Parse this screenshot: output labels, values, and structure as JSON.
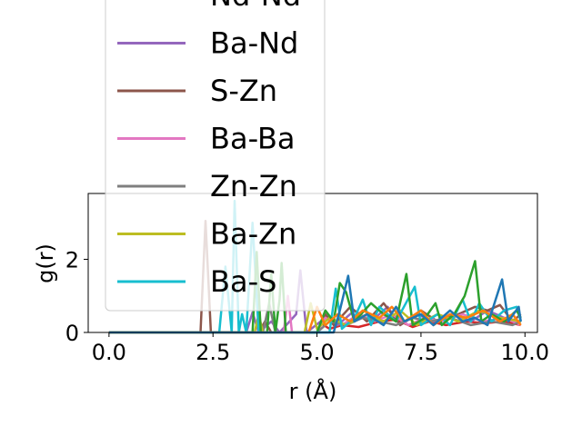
{
  "chart_data": {
    "type": "line",
    "title": "",
    "xlabel": "r (Å)",
    "ylabel": "g(r)",
    "xlim": [
      -0.5,
      10.3
    ],
    "ylim": [
      0,
      3.8
    ],
    "xticks": [
      0.0,
      2.5,
      5.0,
      7.5,
      10.0
    ],
    "xtick_labels": [
      "0.0",
      "2.5",
      "5.0",
      "7.5",
      "10.0"
    ],
    "yticks": [
      0,
      2
    ],
    "ytick_labels": [
      "0",
      "2"
    ],
    "grid": false,
    "legend_placement": "upper-left, extending above the axes",
    "series": [
      {
        "name": "Nd-Nd",
        "color": "#d62728",
        "points": [
          [
            0,
            0
          ],
          [
            5.0,
            0
          ],
          [
            5.1,
            0.25
          ],
          [
            5.3,
            0.1
          ],
          [
            5.6,
            0.2
          ],
          [
            6.0,
            0.15
          ],
          [
            6.5,
            0.3
          ],
          [
            6.9,
            0.35
          ],
          [
            7.3,
            0.15
          ],
          [
            7.7,
            0.3
          ],
          [
            8.1,
            0.2
          ],
          [
            8.6,
            0.3
          ],
          [
            9.0,
            0.25
          ],
          [
            9.5,
            0.3
          ],
          [
            9.9,
            0.2
          ]
        ]
      },
      {
        "name": "Ba-Nd",
        "color": "#9467bd",
        "points": [
          [
            0,
            0
          ],
          [
            3.3,
            0
          ],
          [
            3.45,
            0.55
          ],
          [
            3.6,
            0
          ],
          [
            3.9,
            0.3
          ],
          [
            4.1,
            0
          ],
          [
            4.5,
            0.5
          ],
          [
            4.6,
            1.7
          ],
          [
            4.75,
            0
          ],
          [
            5.2,
            0.4
          ],
          [
            5.5,
            0.2
          ],
          [
            5.9,
            0.6
          ],
          [
            6.3,
            0.3
          ],
          [
            6.7,
            0.7
          ],
          [
            7.0,
            0.2
          ],
          [
            7.4,
            0.5
          ],
          [
            7.8,
            0.3
          ],
          [
            8.3,
            0.5
          ],
          [
            8.7,
            0.3
          ],
          [
            9.1,
            0.6
          ],
          [
            9.5,
            0.4
          ],
          [
            9.9,
            0.3
          ]
        ]
      },
      {
        "name": "S-Zn",
        "color": "#8c564b",
        "points": [
          [
            0,
            0
          ],
          [
            2.2,
            0
          ],
          [
            2.32,
            3.05
          ],
          [
            2.45,
            0
          ],
          [
            3.6,
            0
          ],
          [
            3.75,
            0.3
          ],
          [
            3.9,
            0
          ],
          [
            5.0,
            0
          ],
          [
            5.2,
            0.5
          ],
          [
            5.4,
            0.2
          ],
          [
            5.8,
            0.7
          ],
          [
            6.2,
            0.3
          ],
          [
            6.6,
            0.8
          ],
          [
            7.0,
            0.2
          ],
          [
            7.5,
            0.6
          ],
          [
            7.9,
            0.3
          ],
          [
            8.4,
            0.5
          ],
          [
            8.8,
            0.7
          ],
          [
            9.1,
            0.6
          ],
          [
            9.4,
            0.75
          ],
          [
            9.7,
            0.3
          ],
          [
            9.9,
            0.5
          ]
        ]
      },
      {
        "name": "Ba-Ba",
        "color": "#e377c2",
        "points": [
          [
            0,
            0
          ],
          [
            4.2,
            0
          ],
          [
            4.3,
            1.0
          ],
          [
            4.4,
            0
          ],
          [
            5.0,
            0
          ],
          [
            5.2,
            0.4
          ],
          [
            5.6,
            0.2
          ],
          [
            6.0,
            0.5
          ],
          [
            6.4,
            0.3
          ],
          [
            6.8,
            0.5
          ],
          [
            7.2,
            0.2
          ],
          [
            7.6,
            0.4
          ],
          [
            8.0,
            0.3
          ],
          [
            8.5,
            0.5
          ],
          [
            9.0,
            0.3
          ],
          [
            9.5,
            0.4
          ],
          [
            9.9,
            0.2
          ]
        ]
      },
      {
        "name": "Zn-Zn",
        "color": "#7f7f7f",
        "points": [
          [
            0,
            0
          ],
          [
            3.7,
            0
          ],
          [
            3.85,
            0.8
          ],
          [
            4.0,
            0
          ],
          [
            5.0,
            0
          ],
          [
            5.3,
            0.3
          ],
          [
            5.7,
            0.2
          ],
          [
            6.1,
            0.4
          ],
          [
            6.5,
            0.3
          ],
          [
            6.9,
            0.2
          ],
          [
            7.3,
            0.4
          ],
          [
            7.7,
            0.3
          ],
          [
            8.2,
            0.4
          ],
          [
            8.7,
            0.2
          ],
          [
            9.2,
            0.3
          ],
          [
            9.7,
            0.2
          ],
          [
            9.9,
            0.3
          ]
        ]
      },
      {
        "name": "Ba-Zn",
        "color": "#bcbd22",
        "points": [
          [
            0,
            0
          ],
          [
            3.5,
            0
          ],
          [
            3.6,
            0.5
          ],
          [
            3.7,
            0
          ],
          [
            4.7,
            0
          ],
          [
            4.85,
            0.8
          ],
          [
            5.0,
            0.1
          ],
          [
            5.3,
            0.4
          ],
          [
            5.7,
            0.2
          ],
          [
            6.2,
            0.5
          ],
          [
            6.6,
            0.3
          ],
          [
            7.0,
            0.6
          ],
          [
            7.4,
            0.2
          ],
          [
            7.9,
            0.5
          ],
          [
            8.4,
            0.3
          ],
          [
            8.9,
            0.6
          ],
          [
            9.4,
            0.4
          ],
          [
            9.9,
            0.3
          ]
        ]
      },
      {
        "name": "Ba-S",
        "color": "#17becf",
        "points": [
          [
            0,
            0
          ],
          [
            2.65,
            0
          ],
          [
            2.8,
            1.8
          ],
          [
            2.95,
            0
          ],
          [
            3.02,
            3.6
          ],
          [
            3.12,
            0
          ],
          [
            3.2,
            0.5
          ],
          [
            3.3,
            0
          ],
          [
            3.45,
            3.0
          ],
          [
            3.6,
            0
          ],
          [
            4.0,
            0
          ],
          [
            5.3,
            0
          ],
          [
            5.45,
            1.2
          ],
          [
            5.6,
            0.1
          ],
          [
            5.9,
            0.4
          ],
          [
            6.1,
            0.9
          ],
          [
            6.3,
            0.2
          ],
          [
            6.5,
            0.7
          ],
          [
            6.9,
            0.3
          ],
          [
            7.35,
            1.25
          ],
          [
            7.5,
            0.2
          ],
          [
            7.9,
            0.5
          ],
          [
            8.2,
            0.2
          ],
          [
            8.5,
            0.9
          ],
          [
            8.7,
            0.3
          ],
          [
            8.9,
            0.8
          ],
          [
            9.2,
            0.3
          ],
          [
            9.5,
            0.6
          ],
          [
            9.8,
            0.7
          ],
          [
            9.9,
            0.3
          ]
        ]
      },
      {
        "name": "",
        "color": "#2ca02c",
        "points": [
          [
            0,
            0
          ],
          [
            3.45,
            0
          ],
          [
            3.55,
            2.2
          ],
          [
            3.65,
            0
          ],
          [
            3.8,
            0
          ],
          [
            3.9,
            1.6
          ],
          [
            4.0,
            0
          ],
          [
            4.1,
            0.9
          ],
          [
            4.15,
            1.9
          ],
          [
            4.25,
            0
          ],
          [
            5.0,
            0
          ],
          [
            5.2,
            0.6
          ],
          [
            5.4,
            0.3
          ],
          [
            5.55,
            1.35
          ],
          [
            5.7,
            1.1
          ],
          [
            5.9,
            0.3
          ],
          [
            6.3,
            0.8
          ],
          [
            6.6,
            0.5
          ],
          [
            6.9,
            0.3
          ],
          [
            7.15,
            1.6
          ],
          [
            7.3,
            0.2
          ],
          [
            7.6,
            0.4
          ],
          [
            7.85,
            0.8
          ],
          [
            8.0,
            0.2
          ],
          [
            8.3,
            0.5
          ],
          [
            8.55,
            1.0
          ],
          [
            8.8,
            1.95
          ],
          [
            8.95,
            0.3
          ],
          [
            9.2,
            0.5
          ],
          [
            9.5,
            0.3
          ],
          [
            9.8,
            0.6
          ],
          [
            9.9,
            0.4
          ]
        ]
      },
      {
        "name": "",
        "color": "#ff7f0e",
        "points": [
          [
            0,
            0
          ],
          [
            4.8,
            0
          ],
          [
            5.0,
            0.7
          ],
          [
            5.2,
            0.2
          ],
          [
            5.5,
            0.5
          ],
          [
            5.8,
            0.3
          ],
          [
            6.1,
            0.6
          ],
          [
            6.5,
            0.4
          ],
          [
            6.8,
            0.7
          ],
          [
            7.1,
            0.3
          ],
          [
            7.5,
            0.6
          ],
          [
            7.8,
            0.2
          ],
          [
            8.2,
            0.5
          ],
          [
            8.6,
            0.4
          ],
          [
            9.0,
            0.6
          ],
          [
            9.4,
            0.3
          ],
          [
            9.7,
            0.5
          ],
          [
            9.9,
            0.2
          ]
        ]
      },
      {
        "name": "",
        "color": "#1f77b4",
        "points": [
          [
            0,
            0
          ],
          [
            5.4,
            0
          ],
          [
            5.55,
            0.6
          ],
          [
            5.75,
            1.55
          ],
          [
            5.9,
            0.3
          ],
          [
            6.2,
            0.5
          ],
          [
            6.6,
            0.2
          ],
          [
            6.9,
            0.7
          ],
          [
            7.1,
            0.3
          ],
          [
            7.5,
            0.5
          ],
          [
            7.8,
            0.2
          ],
          [
            8.2,
            0.6
          ],
          [
            8.5,
            0.3
          ],
          [
            8.8,
            0.4
          ],
          [
            9.1,
            0.2
          ],
          [
            9.45,
            1.45
          ],
          [
            9.6,
            0.3
          ],
          [
            9.85,
            0.7
          ],
          [
            9.9,
            0.3
          ]
        ]
      }
    ],
    "legend": [
      {
        "name": "Nd-Nd",
        "color": "#d62728"
      },
      {
        "name": "Ba-Nd",
        "color": "#9467bd"
      },
      {
        "name": "S-Zn",
        "color": "#8c564b"
      },
      {
        "name": "Ba-Ba",
        "color": "#e377c2"
      },
      {
        "name": "Zn-Zn",
        "color": "#7f7f7f"
      },
      {
        "name": "Ba-Zn",
        "color": "#bcbd22"
      },
      {
        "name": "Ba-S",
        "color": "#17becf"
      }
    ]
  }
}
